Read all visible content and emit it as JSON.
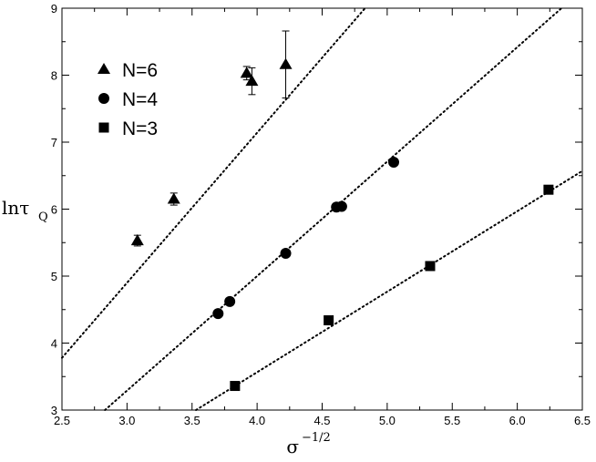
{
  "chart_data": {
    "type": "scatter",
    "xlabel": "σ",
    "xlabel_sup": "−1/2",
    "ylabel": "lnτ",
    "ylabel_sub": "Q",
    "xlim": [
      2.5,
      6.5
    ],
    "ylim": [
      3,
      9
    ],
    "xticks": [
      "2.5",
      "3.0",
      "3.5",
      "4.0",
      "4.5",
      "5.0",
      "5.5",
      "6.0",
      "6.5"
    ],
    "yticks": [
      "3",
      "4",
      "5",
      "6",
      "7",
      "8",
      "9"
    ],
    "grid": false,
    "legend_position": "top-left",
    "series": [
      {
        "name": "N=6",
        "marker": "triangle",
        "points": [
          {
            "x": 3.08,
            "y": 5.53,
            "err": 0.08
          },
          {
            "x": 3.36,
            "y": 6.15,
            "err": 0.09
          },
          {
            "x": 3.92,
            "y": 8.03,
            "err": 0.1
          },
          {
            "x": 3.96,
            "y": 7.91,
            "err": 0.2
          },
          {
            "x": 4.22,
            "y": 8.16,
            "err": 0.5
          }
        ],
        "fit": [
          [
            2.5,
            3.78
          ],
          [
            4.83,
            9.0
          ]
        ]
      },
      {
        "name": "N=4",
        "marker": "circle",
        "points": [
          {
            "x": 3.7,
            "y": 4.44
          },
          {
            "x": 3.79,
            "y": 4.62
          },
          {
            "x": 4.22,
            "y": 5.34
          },
          {
            "x": 4.61,
            "y": 6.03
          },
          {
            "x": 4.65,
            "y": 6.04
          },
          {
            "x": 5.05,
            "y": 6.7
          }
        ],
        "fit": [
          [
            2.83,
            3.0
          ],
          [
            6.34,
            9.0
          ]
        ]
      },
      {
        "name": "N=3",
        "marker": "square",
        "points": [
          {
            "x": 3.83,
            "y": 3.36
          },
          {
            "x": 4.55,
            "y": 4.34
          },
          {
            "x": 5.33,
            "y": 5.15
          },
          {
            "x": 6.24,
            "y": 6.29
          }
        ],
        "fit": [
          [
            3.53,
            3.0
          ],
          [
            6.5,
            6.57
          ]
        ]
      }
    ]
  }
}
